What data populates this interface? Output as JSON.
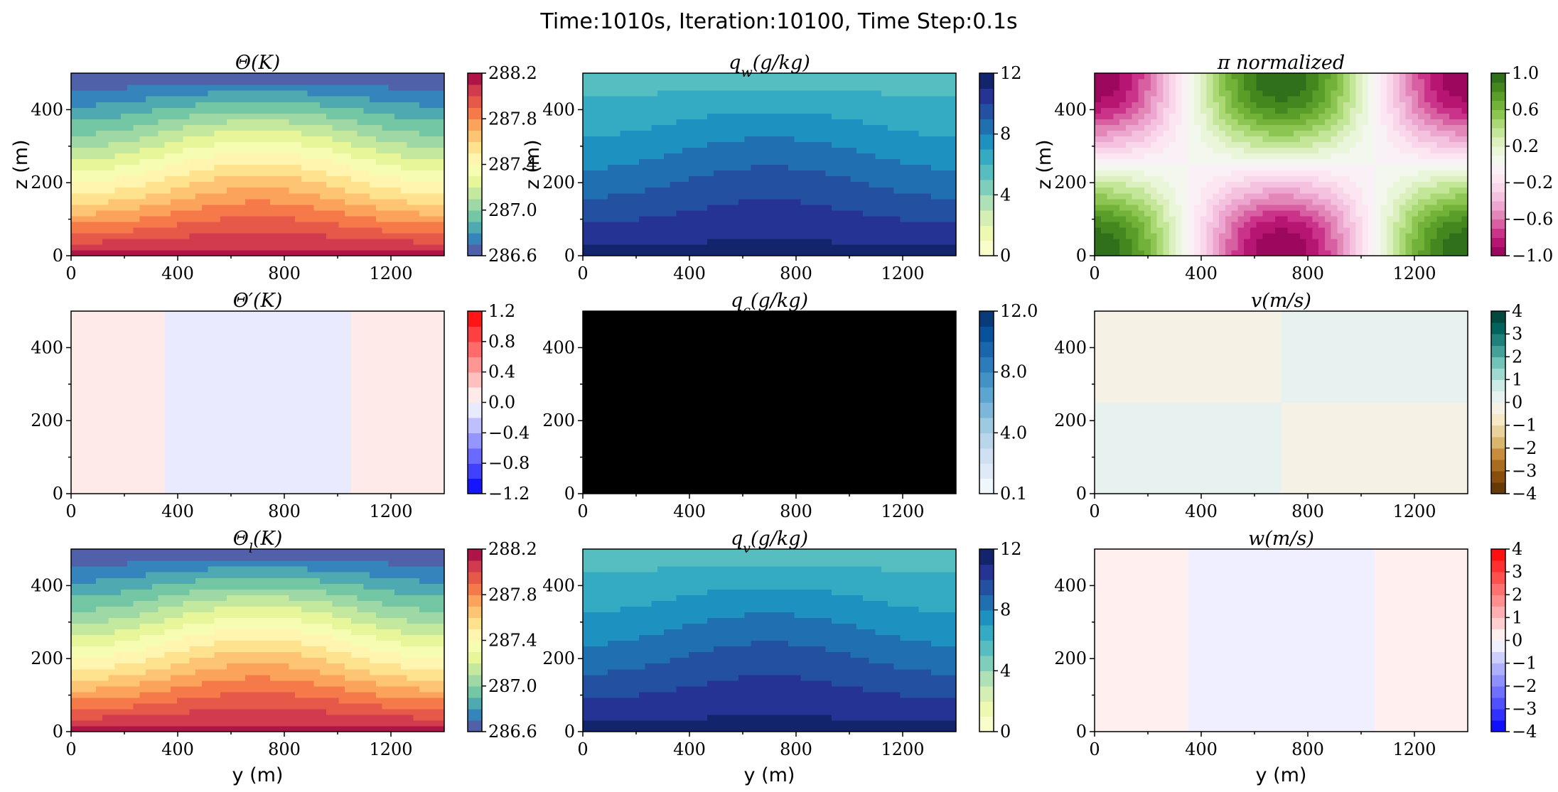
{
  "title": "Time:1010s, Iteration:10100, Time Step:0.1s",
  "colormaps": {
    "spectral": [
      "#5e4fa2",
      "#3288bd",
      "#66c2a5",
      "#abdda4",
      "#e6f598",
      "#ffffbf",
      "#fee08b",
      "#fdae61",
      "#f46d43",
      "#d53e4f",
      "#9e0142"
    ],
    "ylgnbu": [
      "#ffffd9",
      "#edf8b1",
      "#c7e9b4",
      "#7fcdbb",
      "#41b6c4",
      "#1d91c0",
      "#225ea8",
      "#253494",
      "#081d58"
    ],
    "blues": [
      "#f7fbff",
      "#deebf7",
      "#c6dbef",
      "#9ecae1",
      "#6baed6",
      "#4292c6",
      "#2171b5",
      "#08519c",
      "#08306b"
    ],
    "piyg": [
      "#8e0152",
      "#c51b7d",
      "#de77ae",
      "#f1b6da",
      "#fde0ef",
      "#f7f7f7",
      "#e6f5d0",
      "#b8e186",
      "#7fbc41",
      "#4d9221",
      "#276419"
    ],
    "brbg": [
      "#543005",
      "#8c510a",
      "#bf812d",
      "#dfc27d",
      "#f6e8c3",
      "#f5f5f5",
      "#c7eae5",
      "#80cdc1",
      "#35978f",
      "#01665e",
      "#003c30"
    ],
    "bwr": [
      "#0000ff",
      "#ffffff",
      "#ff0000"
    ]
  },
  "chart_data": [
    {
      "type": "heatmap",
      "id": "theta",
      "title": "Θ(K)",
      "xlabel": "",
      "ylabel": "z (m)",
      "xlim": [
        0,
        1400
      ],
      "ylim": [
        0,
        500
      ],
      "xticks": [
        "0",
        "400",
        "800",
        "1200"
      ],
      "yticks": [
        "0",
        "200",
        "400"
      ],
      "field": "strat_wave",
      "field_params": {
        "base": 288.15,
        "slope": -0.0031,
        "amp": 45
      },
      "colormap": "spectral",
      "levels": 16,
      "vmin": 286.6,
      "vmax": 288.2,
      "colorbar_ticks": [
        "286.6",
        "287.0",
        "287.4",
        "287.8",
        "288.2"
      ]
    },
    {
      "type": "heatmap",
      "id": "qw",
      "title": "q_w(g/kg)",
      "xlabel": "",
      "ylabel": "z (m)",
      "xlim": [
        0,
        1400
      ],
      "ylim": [
        0,
        500
      ],
      "xticks": [
        "0",
        "400",
        "800",
        "1200"
      ],
      "yticks": [
        "0",
        "200",
        "400"
      ],
      "field": "strat_wave",
      "field_params": {
        "base": 11.4,
        "slope": -0.012,
        "amp": 45
      },
      "colormap": "ylgnbu",
      "levels": 12,
      "vmin": 0,
      "vmax": 12,
      "colorbar_ticks": [
        "0",
        "4",
        "8",
        "12"
      ]
    },
    {
      "type": "heatmap",
      "id": "pi",
      "title": "π normalized",
      "xlabel": "",
      "ylabel": "z (m)",
      "xlim": [
        0,
        1400
      ],
      "ylim": [
        0,
        500
      ],
      "xticks": [
        "0",
        "400",
        "800",
        "1200"
      ],
      "yticks": [
        "0",
        "200",
        "400"
      ],
      "field": "mode_cos",
      "field_params": {
        "amp": 1.0
      },
      "colormap": "piyg",
      "levels": 20,
      "vmin": -1.0,
      "vmax": 1.0,
      "colorbar_ticks": [
        "−1.0",
        "−0.6",
        "−0.2",
        "0.2",
        "0.6",
        "1.0"
      ]
    },
    {
      "type": "heatmap",
      "id": "theta_prime",
      "title": "Θ′(K)",
      "xlabel": "",
      "ylabel": "",
      "xlim": [
        0,
        1400
      ],
      "ylim": [
        0,
        500
      ],
      "xticks": [
        "0",
        "400",
        "800",
        "1200"
      ],
      "yticks": [
        "0",
        "200",
        "400"
      ],
      "field": "cos_x",
      "field_params": {
        "amp": 0.07
      },
      "colormap": "bwr",
      "levels": 12,
      "vmin": -1.2,
      "vmax": 1.2,
      "colorbar_ticks": [
        "−1.2",
        "−0.8",
        "−0.4",
        "0.0",
        "0.4",
        "0.8",
        "1.2"
      ]
    },
    {
      "type": "heatmap",
      "id": "qc",
      "title": "q_c(g/kg)",
      "xlabel": "",
      "ylabel": "",
      "xlim": [
        0,
        1400
      ],
      "ylim": [
        0,
        500
      ],
      "xticks": [
        "0",
        "400",
        "800",
        "1200"
      ],
      "yticks": [
        "0",
        "200",
        "400"
      ],
      "field": "solid",
      "field_params": {
        "color": "#000000"
      },
      "colormap": "blues",
      "levels": 12,
      "vmin": 0.1,
      "vmax": 12.0,
      "colorbar_ticks": [
        "0.1",
        "4.0",
        "8.0",
        "12.0"
      ]
    },
    {
      "type": "heatmap",
      "id": "v",
      "title": "v(m/s)",
      "xlabel": "",
      "ylabel": "",
      "xlim": [
        0,
        1400
      ],
      "ylim": [
        0,
        500
      ],
      "xticks": [
        "0",
        "400",
        "800",
        "1200"
      ],
      "yticks": [
        "0",
        "200",
        "400"
      ],
      "field": "mode_sin",
      "field_params": {
        "amp": 0.5
      },
      "colormap": "brbg",
      "levels": 16,
      "vmin": -4,
      "vmax": 4,
      "colorbar_ticks": [
        "−4",
        "−3",
        "−2",
        "−1",
        "0",
        "1",
        "2",
        "3",
        "4"
      ]
    },
    {
      "type": "heatmap",
      "id": "theta_l",
      "title": "Θ_l(K)",
      "xlabel": "y (m)",
      "ylabel": "",
      "xlim": [
        0,
        1400
      ],
      "ylim": [
        0,
        500
      ],
      "xticks": [
        "0",
        "400",
        "800",
        "1200"
      ],
      "yticks": [
        "0",
        "200",
        "400"
      ],
      "field": "strat_wave",
      "field_params": {
        "base": 288.15,
        "slope": -0.0031,
        "amp": 45
      },
      "colormap": "spectral",
      "levels": 16,
      "vmin": 286.6,
      "vmax": 288.2,
      "colorbar_ticks": [
        "286.6",
        "287.0",
        "287.4",
        "287.8",
        "288.2"
      ]
    },
    {
      "type": "heatmap",
      "id": "qv",
      "title": "q_v(g/kg)",
      "xlabel": "y (m)",
      "ylabel": "",
      "xlim": [
        0,
        1400
      ],
      "ylim": [
        0,
        500
      ],
      "xticks": [
        "0",
        "400",
        "800",
        "1200"
      ],
      "yticks": [
        "0",
        "200",
        "400"
      ],
      "field": "strat_wave",
      "field_params": {
        "base": 11.4,
        "slope": -0.012,
        "amp": 45
      },
      "colormap": "ylgnbu",
      "levels": 12,
      "vmin": 0,
      "vmax": 12,
      "colorbar_ticks": [
        "0",
        "4",
        "8",
        "12"
      ]
    },
    {
      "type": "heatmap",
      "id": "w",
      "title": "w(m/s)",
      "xlabel": "y (m)",
      "ylabel": "",
      "xlim": [
        0,
        1400
      ],
      "ylim": [
        0,
        500
      ],
      "xticks": [
        "0",
        "400",
        "800",
        "1200"
      ],
      "yticks": [
        "0",
        "200",
        "400"
      ],
      "field": "cos_x",
      "field_params": {
        "amp": 0.12
      },
      "colormap": "bwr",
      "levels": 16,
      "vmin": -4,
      "vmax": 4,
      "colorbar_ticks": [
        "−4",
        "−3",
        "−2",
        "−1",
        "0",
        "1",
        "2",
        "3",
        "4"
      ]
    }
  ]
}
